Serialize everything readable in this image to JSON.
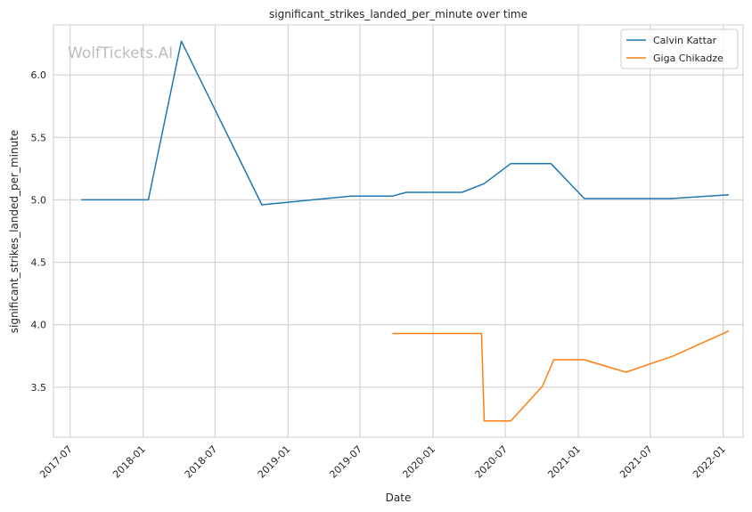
{
  "chart_data": {
    "type": "line",
    "title": "significant_strikes_landed_per_minute over time",
    "xlabel": "Date",
    "ylabel": "significant_strikes_landed_per_minute",
    "watermark": "WolfTickets.AI",
    "xlim": [
      "2017-05-20",
      "2022-02-20"
    ],
    "ylim": [
      3.1,
      6.4
    ],
    "x_ticks": [
      "2017-07",
      "2018-01",
      "2018-07",
      "2019-01",
      "2019-07",
      "2020-01",
      "2020-07",
      "2021-01",
      "2021-07",
      "2022-01"
    ],
    "y_ticks": [
      "3.5",
      "4.0",
      "4.5",
      "5.0",
      "5.5",
      "6.0"
    ],
    "grid": true,
    "legend_position": "top-right",
    "series": [
      {
        "name": "Calvin Kattar",
        "color": "#1f77b4",
        "points": [
          [
            "2017-07-29",
            5.0
          ],
          [
            "2018-01-14",
            5.0
          ],
          [
            "2018-04-07",
            6.27
          ],
          [
            "2018-10-27",
            4.96
          ],
          [
            "2019-06-08",
            5.03
          ],
          [
            "2019-09-21",
            5.03
          ],
          [
            "2019-10-26",
            5.06
          ],
          [
            "2020-03-14",
            5.06
          ],
          [
            "2020-05-09",
            5.13
          ],
          [
            "2020-07-15",
            5.29
          ],
          [
            "2020-10-24",
            5.29
          ],
          [
            "2021-01-16",
            5.01
          ],
          [
            "2021-08-21",
            5.01
          ],
          [
            "2022-01-15",
            5.04
          ]
        ]
      },
      {
        "name": "Giga Chikadze",
        "color": "#ff7f0e",
        "points": [
          [
            "2019-09-21",
            3.93
          ],
          [
            "2020-05-02",
            3.93
          ],
          [
            "2020-05-09",
            3.23
          ],
          [
            "2020-07-15",
            3.23
          ],
          [
            "2020-10-03",
            3.51
          ],
          [
            "2020-10-31",
            3.72
          ],
          [
            "2021-01-16",
            3.72
          ],
          [
            "2021-05-01",
            3.62
          ],
          [
            "2021-08-28",
            3.75
          ],
          [
            "2022-01-15",
            3.95
          ]
        ]
      }
    ]
  }
}
